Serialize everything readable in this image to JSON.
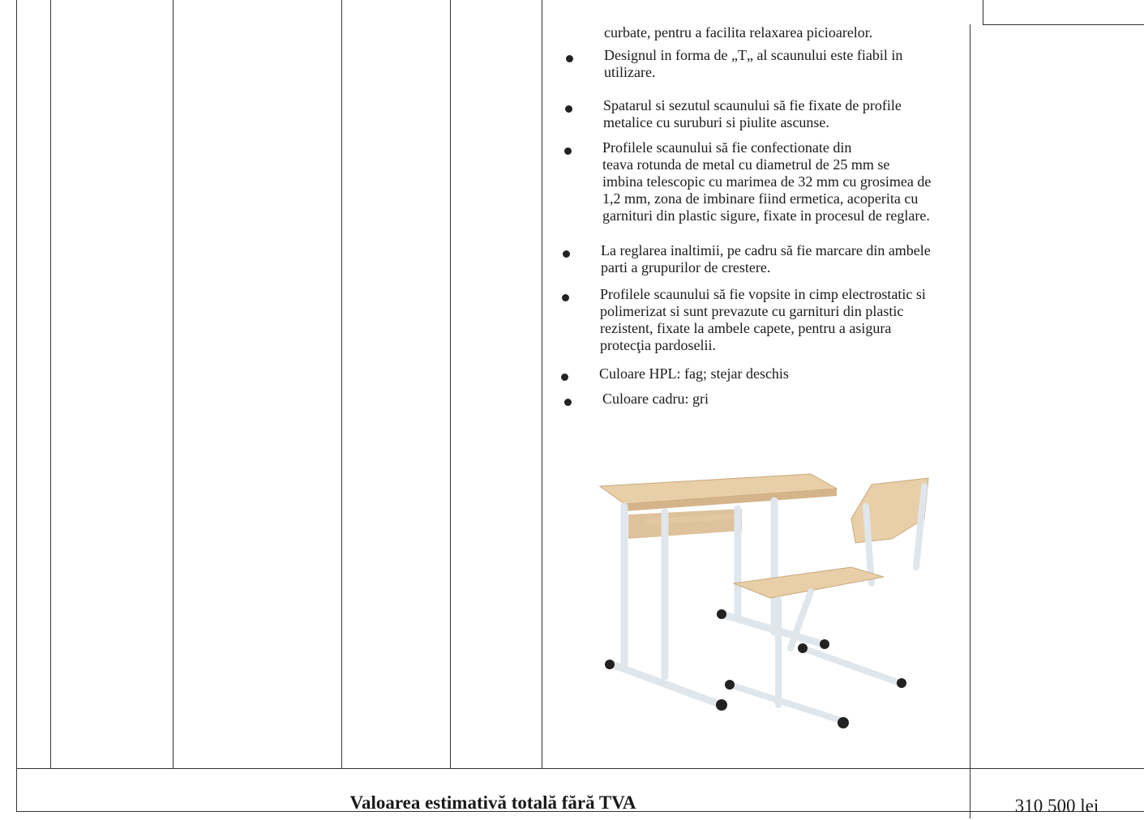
{
  "table": {
    "continuation": "curbate, pentru a facilita relaxarea picioarelor.",
    "bullets": [
      {
        "lines": [
          "Designul in forma de „T„ al scaunului este fiabil in",
          "utilizare."
        ]
      },
      {
        "lines": [
          "Spatarul si sezutul scaunului să fie fixate de profile",
          "metalice cu suruburi si piulite ascunse."
        ]
      },
      {
        "lines": [
          "Profilele scaunului să fie confectionate din",
          "teava rotunda de metal cu diametrul de 25 mm se",
          "imbina telescopic cu marimea de 32 mm cu grosimea de",
          "1,2 mm, zona de imbinare fiind ermetica, acoperita cu",
          "garnituri din plastic sigure, fixate in procesul de reglare."
        ]
      },
      {
        "lines": [
          "La reglarea inaltimii, pe cadru să fie marcare din ambele",
          "parti a grupurilor de crestere."
        ]
      },
      {
        "lines": [
          "Profilele scaunului să fie vopsite in cimp electrostatic si",
          "polimerizat si sunt prevazute cu garnituri din plastic",
          "rezistent, fixate la ambele capete, pentru a asigura",
          "protecţia pardoselii."
        ]
      },
      {
        "lines": [
          "Culoare HPL: fag; stejar deschis"
        ]
      },
      {
        "lines": [
          "Culoare cadru:  gri"
        ]
      }
    ],
    "total": {
      "label": "Valoarea estimativă totală fără TVA",
      "value": "310 500 lei"
    }
  }
}
